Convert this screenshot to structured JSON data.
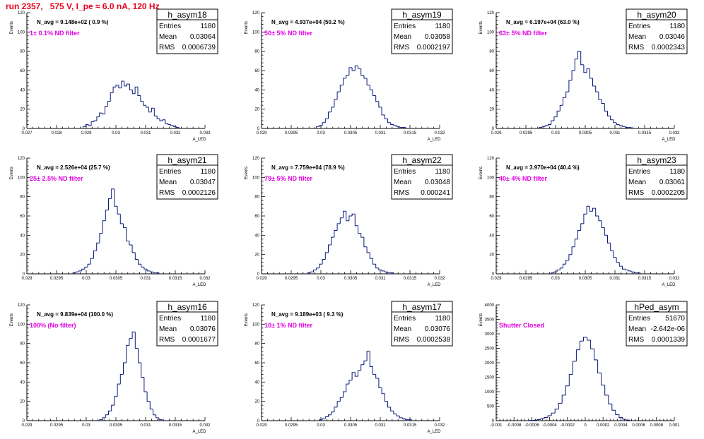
{
  "page_title": "run 2357,   575 V, I_pe ≈ 6.0 nA, 120 Hz",
  "chart_data": [
    {
      "type": "bar",
      "hist_name": "h_asym18",
      "annotation": "N_avg = 9.148e+02 ( 0.9 %)",
      "filter_label": "  1± 0.1% ND filter",
      "stats": {
        "entries_label": "Entries",
        "entries": "1180",
        "mean_label": "Mean",
        "mean": "0.03064",
        "rms_label": "RMS",
        "rms": "0.0006739"
      },
      "ylabel": "Events",
      "xlabel": "A_LED",
      "xlim": [
        0.027,
        0.0335
      ],
      "ylim": [
        0,
        120
      ],
      "xticks": [
        "0.027",
        "0.028",
        "0.029",
        "0.03",
        "0.031",
        "0.032",
        "0.033"
      ],
      "yticks": [
        "0",
        "20",
        "40",
        "60",
        "80",
        "100",
        "120"
      ],
      "x": [
        0.0291,
        0.0292,
        0.0293,
        0.0294,
        0.0295,
        0.0296,
        0.0297,
        0.0298,
        0.0299,
        0.03,
        0.0301,
        0.0302,
        0.0303,
        0.0304,
        0.0305,
        0.0306,
        0.0307,
        0.0308,
        0.0309,
        0.031,
        0.0311,
        0.0312,
        0.0313,
        0.0314,
        0.0315,
        0.0316,
        0.0317,
        0.0318,
        0.0319,
        0.032,
        0.0321,
        0.0322,
        0.0323,
        0.0324,
        0.0325
      ],
      "values": [
        2,
        4,
        3,
        7,
        8,
        12,
        16,
        15,
        23,
        28,
        37,
        43,
        45,
        42,
        49,
        44,
        46,
        40,
        36,
        43,
        34,
        28,
        24,
        22,
        17,
        21,
        13,
        10,
        8,
        9,
        5,
        4,
        3,
        2,
        1
      ]
    },
    {
      "type": "bar",
      "hist_name": "h_asym19",
      "annotation": "N_avg = 4.937e+04 (50.2 %)",
      "filter_label": "  50± 5% ND filter",
      "stats": {
        "entries_label": "Entries",
        "entries": "1180",
        "mean_label": "Mean",
        "mean": "0.03058",
        "rms_label": "RMS",
        "rms": "0.0002197"
      },
      "ylabel": "Events",
      "xlabel": "A_LED",
      "xlim": [
        0.029,
        0.032
      ],
      "ylim": [
        0,
        120
      ],
      "xticks": [
        "0.029",
        "0.0295",
        "0.03",
        "0.0305",
        "0.031",
        "0.0315",
        "0.032"
      ],
      "yticks": [
        "0",
        "20",
        "40",
        "60",
        "80",
        "100",
        "120"
      ],
      "x": [
        0.02995,
        0.03,
        0.03005,
        0.0301,
        0.03015,
        0.0302,
        0.03025,
        0.0303,
        0.03035,
        0.0304,
        0.03045,
        0.0305,
        0.03055,
        0.0306,
        0.03065,
        0.0307,
        0.03075,
        0.0308,
        0.03085,
        0.0309,
        0.03095,
        0.031,
        0.03105,
        0.0311,
        0.03115,
        0.0312,
        0.03125,
        0.0313,
        0.03135,
        0.0314
      ],
      "values": [
        2,
        3,
        6,
        10,
        17,
        22,
        30,
        38,
        45,
        52,
        55,
        63,
        60,
        65,
        62,
        55,
        52,
        45,
        40,
        34,
        28,
        22,
        14,
        10,
        6,
        4,
        3,
        2,
        1,
        1
      ]
    },
    {
      "type": "bar",
      "hist_name": "h_asym20",
      "annotation": "N_avg = 6.197e+04 (63.0 %)",
      "filter_label": "  63± 5% ND filter",
      "stats": {
        "entries_label": "Entries",
        "entries": "1180",
        "mean_label": "Mean",
        "mean": "0.03046",
        "rms_label": "RMS",
        "rms": "0.0002343"
      },
      "ylabel": "Events",
      "xlabel": "A_LED",
      "xlim": [
        0.029,
        0.032
      ],
      "ylim": [
        0,
        120
      ],
      "xticks": [
        "0.029",
        "0.0295",
        "0.03",
        "0.0305",
        "0.031",
        "0.0315",
        "0.032"
      ],
      "yticks": [
        "0",
        "20",
        "40",
        "60",
        "80",
        "100",
        "120"
      ],
      "x": [
        0.02975,
        0.0298,
        0.02985,
        0.0299,
        0.02995,
        0.03,
        0.03005,
        0.0301,
        0.03015,
        0.0302,
        0.03025,
        0.0303,
        0.03035,
        0.0304,
        0.03045,
        0.0305,
        0.03055,
        0.0306,
        0.03065,
        0.0307,
        0.03075,
        0.0308,
        0.03085,
        0.0309,
        0.03095,
        0.031,
        0.03105,
        0.0311,
        0.03115,
        0.0312,
        0.03125
      ],
      "values": [
        1,
        2,
        3,
        4,
        8,
        12,
        18,
        24,
        32,
        38,
        50,
        60,
        72,
        80,
        66,
        58,
        62,
        52,
        44,
        38,
        30,
        26,
        18,
        13,
        9,
        6,
        4,
        3,
        2,
        1,
        1
      ]
    },
    {
      "type": "bar",
      "hist_name": "h_asym21",
      "annotation": "N_avg = 2.526e+04 (25.7 %)",
      "filter_label": "  25± 2.5% ND filter",
      "stats": {
        "entries_label": "Entries",
        "entries": "1180",
        "mean_label": "Mean",
        "mean": "0.03047",
        "rms_label": "RMS",
        "rms": "0.0002126"
      },
      "ylabel": "Events",
      "xlabel": "A_LED",
      "xlim": [
        0.029,
        0.032
      ],
      "ylim": [
        0,
        120
      ],
      "xticks": [
        "0.029",
        "0.0295",
        "0.03",
        "0.0305",
        "0.031",
        "0.0315",
        "0.032"
      ],
      "yticks": [
        "0",
        "20",
        "40",
        "60",
        "80",
        "100",
        "120"
      ],
      "x": [
        0.0298,
        0.02985,
        0.0299,
        0.02995,
        0.03,
        0.03005,
        0.0301,
        0.03015,
        0.0302,
        0.03025,
        0.0303,
        0.03035,
        0.0304,
        0.03045,
        0.0305,
        0.03055,
        0.0306,
        0.03065,
        0.0307,
        0.03075,
        0.0308,
        0.03085,
        0.0309,
        0.03095,
        0.031,
        0.03105,
        0.0311,
        0.03115,
        0.0312
      ],
      "values": [
        1,
        2,
        3,
        5,
        7,
        10,
        16,
        24,
        32,
        42,
        55,
        66,
        78,
        88,
        70,
        62,
        52,
        48,
        34,
        30,
        22,
        15,
        10,
        7,
        5,
        3,
        2,
        1,
        1
      ]
    },
    {
      "type": "bar",
      "hist_name": "h_asym22",
      "annotation": "N_avg = 7.759e+04 (78.9 %)",
      "filter_label": "  79± 5% ND filter",
      "stats": {
        "entries_label": "Entries",
        "entries": "1180",
        "mean_label": "Mean",
        "mean": "0.03048",
        "rms_label": "RMS",
        "rms": "0.000241"
      },
      "ylabel": "Events",
      "xlabel": "A_LED",
      "xlim": [
        0.029,
        0.032
      ],
      "ylim": [
        0,
        120
      ],
      "xticks": [
        "0.029",
        "0.0295",
        "0.03",
        "0.0305",
        "0.031",
        "0.0315",
        "0.032"
      ],
      "yticks": [
        "0",
        "20",
        "40",
        "60",
        "80",
        "100",
        "120"
      ],
      "x": [
        0.0298,
        0.02985,
        0.0299,
        0.02995,
        0.03,
        0.03005,
        0.0301,
        0.03015,
        0.0302,
        0.03025,
        0.0303,
        0.03035,
        0.0304,
        0.03045,
        0.0305,
        0.03055,
        0.0306,
        0.03065,
        0.0307,
        0.03075,
        0.0308,
        0.03085,
        0.0309,
        0.03095,
        0.031,
        0.03105,
        0.0311,
        0.03115,
        0.0312
      ],
      "values": [
        1,
        2,
        4,
        6,
        10,
        15,
        22,
        30,
        38,
        45,
        52,
        58,
        65,
        55,
        60,
        62,
        50,
        42,
        38,
        28,
        22,
        16,
        10,
        6,
        4,
        3,
        2,
        1,
        1
      ]
    },
    {
      "type": "bar",
      "hist_name": "h_asym23",
      "annotation": "N_avg = 3.970e+04 (40.4 %)",
      "filter_label": "  40± 4% ND filter",
      "stats": {
        "entries_label": "Entries",
        "entries": "1180",
        "mean_label": "Mean",
        "mean": "0.03061",
        "rms_label": "RMS",
        "rms": "0.0002205"
      },
      "ylabel": "Events",
      "xlabel": "A_LED",
      "xlim": [
        0.029,
        0.032
      ],
      "ylim": [
        0,
        120
      ],
      "xticks": [
        "0.029",
        "0.0295",
        "0.03",
        "0.0305",
        "0.031",
        "0.0315",
        "0.032"
      ],
      "yticks": [
        "0",
        "20",
        "40",
        "60",
        "80",
        "100",
        "120"
      ],
      "x": [
        0.02995,
        0.03,
        0.03005,
        0.0301,
        0.03015,
        0.0302,
        0.03025,
        0.0303,
        0.03035,
        0.0304,
        0.03045,
        0.0305,
        0.03055,
        0.0306,
        0.03065,
        0.0307,
        0.03075,
        0.0308,
        0.03085,
        0.0309,
        0.03095,
        0.031,
        0.03105,
        0.0311,
        0.03115,
        0.0312,
        0.03125,
        0.0313,
        0.03135,
        0.0314
      ],
      "values": [
        1,
        2,
        4,
        6,
        10,
        14,
        20,
        28,
        36,
        45,
        52,
        62,
        70,
        65,
        68,
        60,
        55,
        48,
        40,
        32,
        24,
        17,
        12,
        8,
        5,
        4,
        3,
        2,
        1,
        1
      ]
    },
    {
      "type": "bar",
      "hist_name": "h_asym16",
      "annotation": "N_avg = 9.839e+04 (100.0 %)",
      "filter_label": "  100% (No filter)",
      "stats": {
        "entries_label": "Entries",
        "entries": "1180",
        "mean_label": "Mean",
        "mean": "0.03076",
        "rms_label": "RMS",
        "rms": "0.0001677"
      },
      "ylabel": "Events",
      "xlabel": "A_LED",
      "xlim": [
        0.029,
        0.032
      ],
      "ylim": [
        0,
        120
      ],
      "xticks": [
        "0.029",
        "0.0295",
        "0.03",
        "0.0305",
        "0.031",
        "0.0315",
        "0.032"
      ],
      "yticks": [
        "0",
        "20",
        "40",
        "60",
        "80",
        "100",
        "120"
      ],
      "x": [
        0.03025,
        0.0303,
        0.03035,
        0.0304,
        0.03045,
        0.0305,
        0.03055,
        0.0306,
        0.03065,
        0.0307,
        0.03075,
        0.0308,
        0.03085,
        0.0309,
        0.03095,
        0.031,
        0.03105,
        0.0311,
        0.03115,
        0.0312,
        0.03125
      ],
      "values": [
        1,
        3,
        6,
        10,
        16,
        25,
        38,
        48,
        60,
        78,
        85,
        92,
        75,
        60,
        45,
        30,
        20,
        12,
        6,
        3,
        1
      ]
    },
    {
      "type": "bar",
      "hist_name": "h_asym17",
      "annotation": "N_avg = 9.189e+03 ( 9.3 %)",
      "filter_label": "  10± 1% ND filter",
      "stats": {
        "entries_label": "Entries",
        "entries": "1180",
        "mean_label": "Mean",
        "mean": "0.03076",
        "rms_label": "RMS",
        "rms": "0.0002538"
      },
      "ylabel": "Events",
      "xlabel": "A_LED",
      "xlim": [
        0.029,
        0.032
      ],
      "ylim": [
        0,
        120
      ],
      "xticks": [
        "0.029",
        "0.0295",
        "0.03",
        "0.0305",
        "0.031",
        "0.0315",
        "0.032"
      ],
      "yticks": [
        "0",
        "20",
        "40",
        "60",
        "80",
        "100",
        "120"
      ],
      "x": [
        0.03,
        0.03005,
        0.0301,
        0.03015,
        0.0302,
        0.03025,
        0.0303,
        0.03035,
        0.0304,
        0.03045,
        0.0305,
        0.03055,
        0.0306,
        0.03065,
        0.0307,
        0.03075,
        0.0308,
        0.03085,
        0.0309,
        0.03095,
        0.031,
        0.03105,
        0.0311,
        0.03115,
        0.0312,
        0.03125,
        0.0313,
        0.03135,
        0.0314,
        0.03145,
        0.0315
      ],
      "values": [
        1,
        2,
        4,
        6,
        9,
        14,
        20,
        24,
        30,
        38,
        42,
        50,
        46,
        52,
        58,
        62,
        72,
        56,
        48,
        44,
        34,
        28,
        20,
        14,
        10,
        7,
        5,
        3,
        2,
        1,
        1
      ]
    },
    {
      "type": "bar",
      "hist_name": "hPed_asym",
      "annotation": "",
      "filter_label": "Shutter Closed",
      "stats": {
        "entries_label": "Entries",
        "entries": "51670",
        "mean_label": "Mean",
        "mean": "-2.642e-06",
        "rms_label": "RMS",
        "rms": "0.0001339"
      },
      "ylabel": "Events",
      "xlabel": "",
      "xlim": [
        -0.001,
        0.001
      ],
      "ylim": [
        0,
        4000
      ],
      "xticks": [
        "-0.001",
        "-0.0008",
        "-0.0006",
        "-0.0004",
        "-0.0002",
        "0",
        "0.0002",
        "0.0004",
        "0.0006",
        "0.0008",
        "0.001"
      ],
      "yticks": [
        "0",
        "500",
        "1000",
        "1500",
        "2000",
        "2500",
        "3000",
        "3500",
        "4000"
      ],
      "x": [
        -0.0006,
        -0.00056,
        -0.00052,
        -0.00048,
        -0.00044,
        -0.0004,
        -0.00036,
        -0.00032,
        -0.00028,
        -0.00024,
        -0.0002,
        -0.00016,
        -0.00012,
        -8e-05,
        -4e-05,
        0,
        4e-05,
        8e-05,
        0.00012,
        0.00016,
        0.0002,
        0.00024,
        0.00028,
        0.00032,
        0.00036,
        0.0004,
        0.00044,
        0.00048
      ],
      "values": [
        10,
        20,
        40,
        70,
        110,
        170,
        260,
        400,
        600,
        880,
        1200,
        1600,
        2050,
        2450,
        2750,
        2880,
        2780,
        2480,
        2100,
        1650,
        1230,
        880,
        580,
        360,
        210,
        110,
        50,
        20
      ]
    }
  ]
}
